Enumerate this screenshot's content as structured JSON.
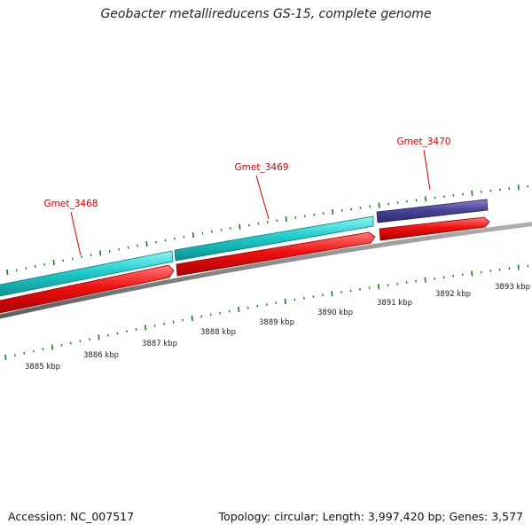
{
  "title": "Geobacter metallireducens GS-15, complete genome",
  "footer": {
    "accession": "Accession: NC_007517",
    "summary": "Topology: circular; Length: 3,997,420 bp; Genes: 3,577"
  },
  "genes": [
    {
      "name": "Gmet_3468",
      "start_kbp": 3884.6,
      "end_kbp": 3887.6,
      "strand": "minus-label"
    },
    {
      "name": "Gmet_3469",
      "start_kbp": 3887.6,
      "end_kbp": 3891.1
    },
    {
      "name": "Gmet_3470",
      "start_kbp": 3891.1,
      "end_kbp": 3892.9
    }
  ],
  "kbp_ticks": [
    "3885 kbp",
    "3886 kbp",
    "3887 kbp",
    "3888 kbp",
    "3889 kbp",
    "3890 kbp",
    "3891 kbp",
    "3892 kbp",
    "3893 kbp"
  ],
  "colors": {
    "cds_forward": "#20c8c8",
    "cds_forward_alt": "#3a3a8c",
    "gene_track": "#e8101a",
    "backbone": "#7a7a7a",
    "tick": "#1e7a1e",
    "label": "#cc0000"
  }
}
